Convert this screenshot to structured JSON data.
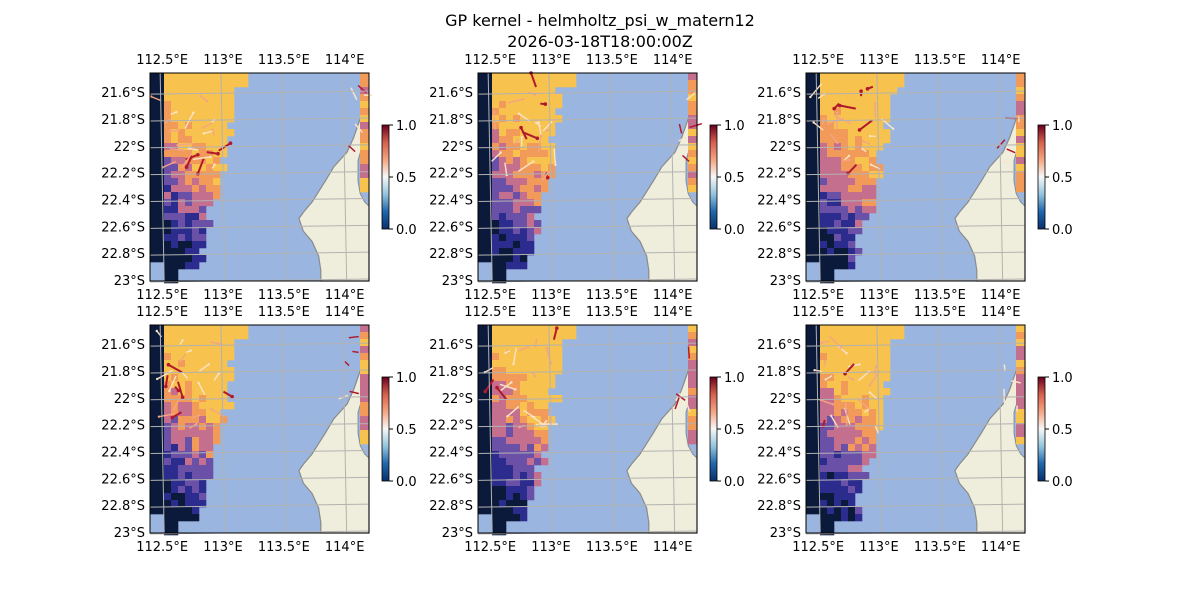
{
  "figure": {
    "title_line1": "GP kernel - helmholtz_psi_w_matern12",
    "title_line2": "2026-03-18T18:00:00Z"
  },
  "colors": {
    "ocean": "#9ab6e0",
    "land": "#efeedc",
    "coast": "#8a8a8a",
    "grid": "#b2b2b2",
    "cmap": [
      "#0b1a3a",
      "#2c2c8e",
      "#6b50a8",
      "#c56f8f",
      "#f19a5a",
      "#f7c24e"
    ],
    "colorbar": [
      "#08306b",
      "#2166ac",
      "#92c5de",
      "#f7f7f7",
      "#f4a582",
      "#d6604d",
      "#67001f"
    ]
  },
  "chart_data": {
    "type": "heatmap",
    "layout": "2x3 panels",
    "panel_count": 6,
    "map_extent": {
      "lon": [
        112.4,
        114.2
      ],
      "lat": [
        -23.0,
        -21.45
      ]
    },
    "lon_ticks": [
      112.5,
      113.0,
      113.5,
      114.0
    ],
    "lon_tick_labels": [
      "112.5°E",
      "113°E",
      "113.5°E",
      "114°E"
    ],
    "lat_ticks": [
      -21.6,
      -21.8,
      -22.0,
      -22.2,
      -22.4,
      -22.6,
      -22.8,
      -23.0
    ],
    "lat_tick_labels": [
      "21.6°S",
      "21.8°S",
      "22°S",
      "22.2°S",
      "22.4°S",
      "22.6°S",
      "22.8°S",
      "23°S"
    ],
    "colorbar": {
      "range": [
        0.0,
        1.0
      ],
      "ticks": [
        0.0,
        0.5,
        1.0
      ],
      "tick_labels": [
        "0.0",
        "0.5",
        "1.0"
      ]
    },
    "field": "gridded values increasing from south (low) to north-east (high) over the offshore region west of the coast",
    "vectors": "sparse quiver arrows over the northern part of each panel, differing per panel",
    "grid": true
  }
}
